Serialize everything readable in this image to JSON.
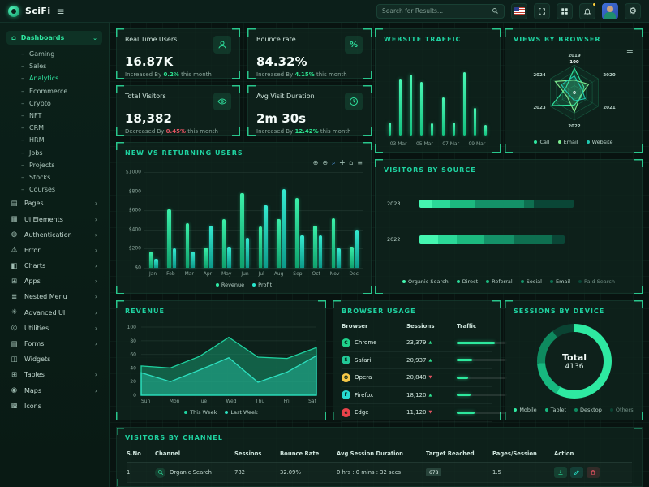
{
  "header": {
    "brand": "SciFi",
    "search_placeholder": "Search for Results...",
    "icons": [
      "us-flag",
      "fullscreen",
      "apps-grid",
      "notifications",
      "avatar",
      "settings"
    ]
  },
  "sidebar": {
    "items": [
      {
        "label": "Dashboards",
        "icon": "home-icon",
        "glyph": "⌂",
        "type": "group",
        "expanded": true,
        "active": true,
        "children": [
          "Gaming",
          "Sales",
          "Analytics",
          "Ecommerce",
          "Crypto",
          "NFT",
          "CRM",
          "HRM",
          "Jobs",
          "Projects",
          "Stocks",
          "Courses"
        ],
        "active_child": "Analytics"
      },
      {
        "label": "Pages",
        "icon": "pages-icon",
        "glyph": "▤",
        "chevron": true
      },
      {
        "label": "Ui Elements",
        "icon": "ui-elements-icon",
        "glyph": "▦",
        "chevron": true
      },
      {
        "label": "Authentication",
        "icon": "authentication-icon",
        "glyph": "◍",
        "chevron": true
      },
      {
        "label": "Error",
        "icon": "error-icon",
        "glyph": "⚠",
        "chevron": true
      },
      {
        "label": "Charts",
        "icon": "charts-icon",
        "glyph": "◧",
        "chevron": true
      },
      {
        "label": "Apps",
        "icon": "apps-icon",
        "glyph": "⊞",
        "chevron": true
      },
      {
        "label": "Nested Menu",
        "icon": "nested-menu-icon",
        "glyph": "≣",
        "chevron": true
      },
      {
        "label": "Advanced UI",
        "icon": "advanced-ui-icon",
        "glyph": "✳",
        "chevron": true
      },
      {
        "label": "Utilities",
        "icon": "utilities-icon",
        "glyph": "◎",
        "chevron": true
      },
      {
        "label": "Forms",
        "icon": "forms-icon",
        "glyph": "▤",
        "chevron": true
      },
      {
        "label": "Widgets",
        "icon": "widgets-icon",
        "glyph": "◫",
        "chevron": false
      },
      {
        "label": "Tables",
        "icon": "tables-icon",
        "glyph": "⊞",
        "chevron": true
      },
      {
        "label": "Maps",
        "icon": "maps-icon",
        "glyph": "◉",
        "chevron": true
      },
      {
        "label": "Icons",
        "icon": "icons-icon",
        "glyph": "▩",
        "chevron": false
      }
    ]
  },
  "stats": [
    {
      "label": "Real Time Users",
      "value": "16.87K",
      "change_prefix": "Increased By",
      "change_pct": "0.2%",
      "change_suffix": "this month",
      "trend": "up",
      "icon": "user-icon"
    },
    {
      "label": "Bounce rate",
      "value": "84.32%",
      "change_prefix": "Increased By",
      "change_pct": "4.15%",
      "change_suffix": "this month",
      "trend": "up",
      "icon": "percent-icon"
    },
    {
      "label": "Total Visitors",
      "value": "18,382",
      "change_prefix": "Decreased By",
      "change_pct": "0.45%",
      "change_suffix": "this month",
      "trend": "down",
      "icon": "eye-icon"
    },
    {
      "label": "Avg Visit Duration",
      "value": "2m 30s",
      "change_prefix": "Increased By",
      "change_pct": "12.42%",
      "change_suffix": "this month",
      "trend": "up",
      "icon": "clock-icon"
    }
  ],
  "widgets": {
    "website_traffic": {
      "title": "WEBSITE TRAFFIC",
      "type": "bar",
      "values": [
        20,
        85,
        92,
        80,
        18,
        58,
        20,
        95,
        42,
        16
      ],
      "x_labels": [
        "03 Mar",
        "05 Mar",
        "07 Mar",
        "09 Mar"
      ],
      "bar_color": "#2ef0aa"
    },
    "views_by_browser": {
      "title": "VIEWS BY BROWSER",
      "type": "radar",
      "axes": [
        "2019",
        "2020",
        "2021",
        "2022",
        "2023",
        "2024"
      ],
      "max_label": "100",
      "min_label": "0",
      "series": [
        {
          "name": "Call",
          "color": "#2fe5a0",
          "values": [
            88,
            40,
            30,
            45,
            95,
            35
          ]
        },
        {
          "name": "Email",
          "color": "#7deb8f",
          "values": [
            45,
            60,
            25,
            70,
            30,
            80
          ]
        },
        {
          "name": "Website",
          "color": "#1fc9b0",
          "values": [
            60,
            30,
            45,
            30,
            20,
            55
          ]
        }
      ]
    },
    "new_vs_returning": {
      "title": "NEW VS RETURNING USERS",
      "type": "bar",
      "y_ticks": [
        "$1000",
        "$800",
        "$600",
        "$400",
        "$200",
        "$0"
      ],
      "y_max": 1000,
      "categories": [
        "Jan",
        "Feb",
        "Mar",
        "Apr",
        "May",
        "Jun",
        "Jul",
        "Aug",
        "Sep",
        "Oct",
        "Nov",
        "Dec"
      ],
      "series": [
        {
          "name": "Revenue",
          "color": "#2fe9a4",
          "values": [
            170,
            610,
            465,
            210,
            510,
            780,
            430,
            505,
            725,
            445,
            515,
            220
          ]
        },
        {
          "name": "Profit",
          "color": "#28e6cd",
          "values": [
            95,
            200,
            170,
            440,
            220,
            310,
            650,
            820,
            340,
            340,
            200,
            400
          ]
        }
      ],
      "toolbar": [
        "zoom-in-icon",
        "zoom-out-icon",
        "selection-zoom-icon",
        "pan-icon",
        "home-icon",
        "menu-icon"
      ],
      "toolbar_glyphs": [
        "⊕",
        "⊖",
        "⌕",
        "✚",
        "⌂",
        "≡"
      ]
    },
    "visitors_by_source": {
      "title": "VISITORS BY SOURCE",
      "type": "stacked-bar-horizontal",
      "legend": [
        "Organic Search",
        "Direct",
        "Referral",
        "Social",
        "Email",
        "Paid Search"
      ],
      "colors": [
        "#45f5b0",
        "#2bd898",
        "#1cb97f",
        "#149168",
        "#0e6f50",
        "#0a4636"
      ],
      "rows": [
        {
          "year": "2023",
          "values": [
            8,
            12,
            16,
            32,
            6,
            26
          ]
        },
        {
          "year": "2022",
          "values": [
            12,
            12,
            18,
            19,
            25,
            8
          ]
        }
      ]
    },
    "revenue": {
      "title": "REVENUE",
      "type": "area",
      "y_ticks": [
        100,
        80,
        60,
        40,
        20,
        0
      ],
      "y_max": 100,
      "x": [
        "Sun",
        "Mon",
        "Tue",
        "Wed",
        "Thu",
        "Fri",
        "Sat"
      ],
      "series": [
        {
          "name": "This Week",
          "color": "#1fd3a1",
          "values": [
            43,
            40,
            57,
            85,
            56,
            54,
            70
          ]
        },
        {
          "name": "Last Week",
          "color": "#2de0c0",
          "values": [
            33,
            20,
            37,
            55,
            19,
            34,
            58
          ]
        }
      ]
    },
    "browser_usage": {
      "title": "BROWSER USAGE",
      "type": "table",
      "columns": [
        "Browser",
        "Sessions",
        "Traffic"
      ],
      "rows": [
        {
          "browser": "Chrome",
          "icon": "chrome-icon",
          "icon_color": "#1fd18a",
          "initial": "C",
          "sessions": "23,379",
          "trend": "up",
          "traffic_pct": 75
        },
        {
          "browser": "Safari",
          "icon": "safari-icon",
          "icon_color": "#22c997",
          "initial": "S",
          "sessions": "20,937",
          "trend": "up",
          "traffic_pct": 30
        },
        {
          "browser": "Opera",
          "icon": "opera-icon",
          "icon_color": "#f7c948",
          "initial": "O",
          "sessions": "20,848",
          "trend": "down",
          "traffic_pct": 22
        },
        {
          "browser": "Firefox",
          "icon": "firefox-icon",
          "icon_color": "#27d9d0",
          "initial": "F",
          "sessions": "18,120",
          "trend": "up",
          "traffic_pct": 28
        },
        {
          "browser": "Edge",
          "icon": "edge-icon",
          "icon_color": "#e8434a",
          "initial": "e",
          "sessions": "11,120",
          "trend": "down",
          "traffic_pct": 35
        }
      ]
    },
    "sessions_by_device": {
      "title": "SESSIONS BY DEVICE",
      "type": "donut",
      "total_label": "Total",
      "total_value": "4136",
      "slices": [
        {
          "name": "Mobile",
          "pct": 58,
          "color": "#2ee9a1"
        },
        {
          "name": "Tablet",
          "pct": 16,
          "color": "#17b87f"
        },
        {
          "name": "Desktop",
          "pct": 16,
          "color": "#0e8a5f"
        },
        {
          "name": "Others",
          "pct": 10,
          "color": "#0a4332"
        }
      ]
    },
    "visitors_by_channel": {
      "title": "VISITORS BY CHANNEL",
      "type": "table",
      "columns": [
        "S.No",
        "Channel",
        "Sessions",
        "Bounce Rate",
        "Avg Session Duration",
        "Target Reached",
        "Pages/Session",
        "Action"
      ],
      "rows": [
        {
          "sno": "1",
          "channel": "Organic Search",
          "sessions": "782",
          "bounce_rate": "32.09%",
          "avg_session_duration": "0 hrs : 0 mins : 32 secs",
          "target_reached": "678",
          "pages_per_session": "1.5",
          "actions": [
            "download-icon",
            "edit-icon",
            "delete-icon"
          ]
        }
      ]
    }
  }
}
